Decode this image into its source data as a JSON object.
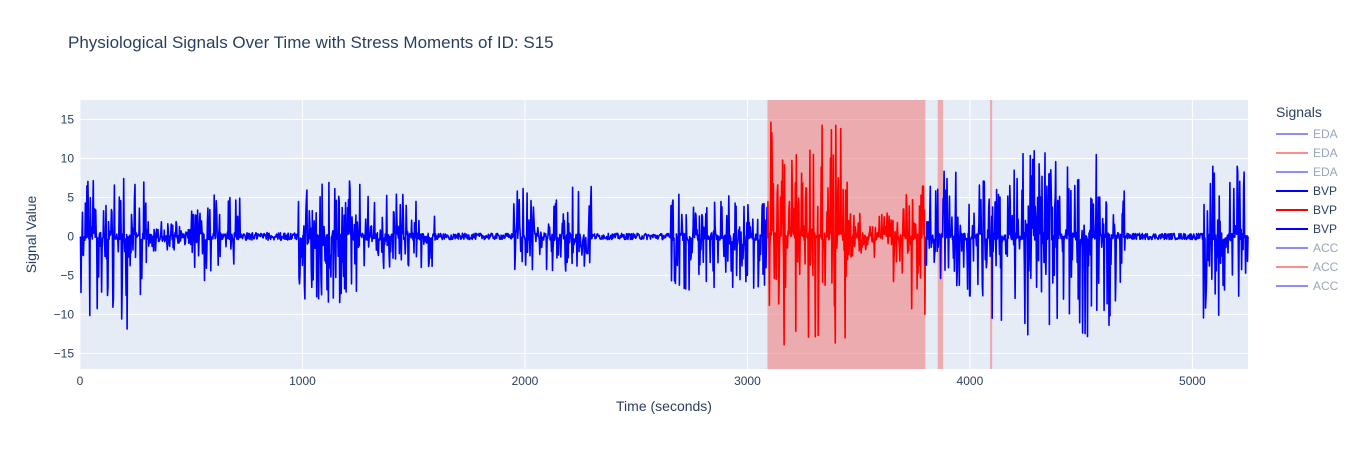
{
  "chart_data": {
    "type": "line",
    "title": "Physiological Signals Over Time with Stress Moments of ID: S15",
    "xlabel": "Time (seconds)",
    "ylabel": "Signal Value",
    "xlim": [
      0,
      5250
    ],
    "ylim": [
      -17,
      17.5
    ],
    "x_ticks": [
      0,
      1000,
      2000,
      3000,
      4000,
      5000
    ],
    "y_ticks": [
      -15,
      -10,
      -5,
      0,
      5,
      10,
      15
    ],
    "grid": true,
    "legend_title": "Signals",
    "legend_position": "right",
    "legend": [
      {
        "name": "EDA",
        "color": "#0000ff",
        "visible": false
      },
      {
        "name": "EDA",
        "color": "#ff0000",
        "visible": false
      },
      {
        "name": "EDA",
        "color": "#0000ff",
        "visible": false
      },
      {
        "name": "BVP",
        "color": "#0000ff",
        "visible": true
      },
      {
        "name": "BVP",
        "color": "#ff0000",
        "visible": true
      },
      {
        "name": "BVP",
        "color": "#0000ff",
        "visible": true
      },
      {
        "name": "ACC",
        "color": "#0000ff",
        "visible": false
      },
      {
        "name": "ACC",
        "color": "#ff0000",
        "visible": false
      },
      {
        "name": "ACC",
        "color": "#0000ff",
        "visible": false
      }
    ],
    "stress_regions_seconds": [
      [
        3090,
        3800
      ],
      [
        3855,
        3880
      ],
      [
        4090,
        4100
      ]
    ],
    "series": [
      {
        "name": "BVP",
        "segment": "pre-stress",
        "color": "#0000ff",
        "x_range": [
          0,
          3090
        ],
        "approx_envelope": [
          {
            "x": [
              0,
              300
            ],
            "amp_max": 7.5,
            "amp_min": -12
          },
          {
            "x": [
              300,
              500
            ],
            "amp_max": 2,
            "amp_min": -2
          },
          {
            "x": [
              500,
              720
            ],
            "amp_max": 5.5,
            "amp_min": -6
          },
          {
            "x": [
              720,
              980
            ],
            "amp_max": 0.5,
            "amp_min": -0.5
          },
          {
            "x": [
              980,
              1260
            ],
            "amp_max": 7.5,
            "amp_min": -8.5
          },
          {
            "x": [
              1260,
              1600
            ],
            "amp_max": 5.5,
            "amp_min": -4.5
          },
          {
            "x": [
              1600,
              1950
            ],
            "amp_max": 0.4,
            "amp_min": -0.4
          },
          {
            "x": [
              1950,
              2300
            ],
            "amp_max": 6.5,
            "amp_min": -4.5
          },
          {
            "x": [
              2300,
              2650
            ],
            "amp_max": 0.4,
            "amp_min": -0.4
          },
          {
            "x": [
              2650,
              3090
            ],
            "amp_max": 5.5,
            "amp_min": -7
          }
        ]
      },
      {
        "name": "BVP",
        "segment": "stress",
        "color": "#ff0000",
        "x_range": [
          3090,
          3800
        ],
        "approx_envelope": [
          {
            "x": [
              3090,
              3450
            ],
            "amp_max": 15.5,
            "amp_min": -15.5
          },
          {
            "x": [
              3450,
              3650
            ],
            "amp_max": 3,
            "amp_min": -3
          },
          {
            "x": [
              3650,
              3800
            ],
            "amp_max": 6.5,
            "amp_min": -11
          }
        ]
      },
      {
        "name": "BVP",
        "segment": "post-stress",
        "color": "#0000ff",
        "x_range": [
          3800,
          5250
        ],
        "approx_envelope": [
          {
            "x": [
              3800,
              4100
            ],
            "amp_max": 8.5,
            "amp_min": -8
          },
          {
            "x": [
              4100,
              4700
            ],
            "amp_max": 11,
            "amp_min": -13
          },
          {
            "x": [
              4700,
              5050
            ],
            "amp_max": 0.4,
            "amp_min": -0.4
          },
          {
            "x": [
              5050,
              5250
            ],
            "amp_max": 9.5,
            "amp_min": -10.5
          }
        ]
      }
    ]
  }
}
